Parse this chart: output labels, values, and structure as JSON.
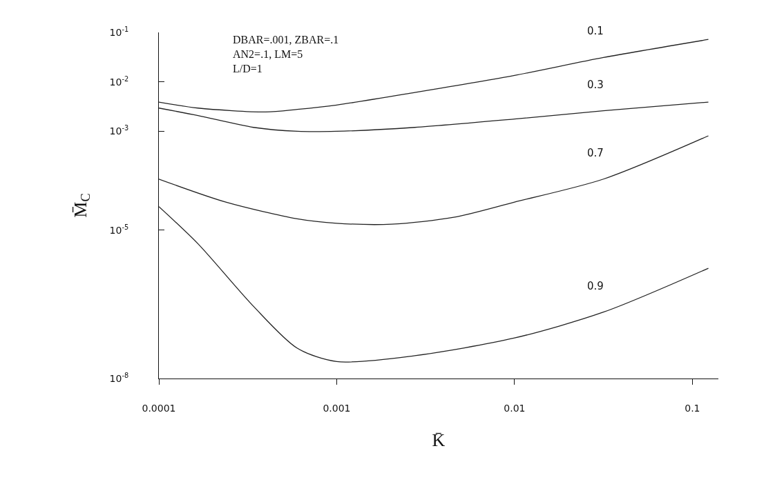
{
  "chart_data": {
    "type": "line",
    "xlabel": "K̄",
    "ylabel": "M̄$_{C}$",
    "annotations": [
      "DBAR=.001, ZBAR=.1",
      "AN2=.1, LM=5",
      "L/D=1"
    ],
    "x": [
      0.0001,
      0.000166,
      0.0004,
      0.0006,
      0.001,
      0.00275,
      0.01,
      0.0316,
      0.123
    ],
    "series": [
      {
        "name": "0.1",
        "color": "#222222",
        "values": [
          0.0039,
          0.00295,
          0.00246,
          0.00277,
          0.0034,
          0.0061,
          0.0135,
          0.031,
          0.072
        ]
      },
      {
        "name": "0.3",
        "color": "#222222",
        "x": [
          0.0001,
          0.000166,
          0.00034,
          0.0006,
          0.001,
          0.00275,
          0.01,
          0.0316,
          0.123
        ],
        "values": [
          0.00295,
          0.00208,
          0.0012,
          0.001,
          0.001,
          0.0012,
          0.00177,
          0.0026,
          0.0039
        ]
      },
      {
        "name": "0.7",
        "color": "#222222",
        "x": [
          0.0001,
          0.000238,
          0.0006,
          0.001,
          0.00204,
          0.00455,
          0.01,
          0.0316,
          0.123
        ],
        "values": [
          0.000108,
          3.7e-05,
          1.7e-05,
          1.38e-05,
          1.32e-05,
          1.82e-05,
          3.7e-05,
          0.000108,
          0.00081
        ]
      },
      {
        "name": "0.9",
        "color": "#222222",
        "x": [
          0.0001,
          0.000166,
          0.00034,
          0.0006,
          0.001,
          0.00275,
          0.01,
          0.0316,
          0.123
        ],
        "values": [
          3e-05,
          5.3e-06,
          2.9e-07,
          4.1e-08,
          2.2e-08,
          2.9e-08,
          6.6e-08,
          2.2e-07,
          1.7e-06
        ]
      }
    ],
    "log": "xy",
    "grid": false,
    "legend": false,
    "marker": "none",
    "line_style": "solid",
    "xlim": [
      0.0001,
      0.14
    ],
    "ylim": [
      1e-08,
      0.1
    ],
    "xticks": [
      0.0001,
      0.001,
      0.01,
      0.1
    ],
    "yticks": [
      {
        "value": 0.1,
        "label": "10$^{-1}$"
      },
      {
        "value": 0.01,
        "label": "10$^{-2}$"
      },
      {
        "value": 0.001,
        "label": "10$^{-3}$"
      },
      {
        "value": 1e-05,
        "label": "10$^{-5}$"
      },
      {
        "value": 1e-08,
        "label": "10$^{-8}$"
      }
    ]
  }
}
